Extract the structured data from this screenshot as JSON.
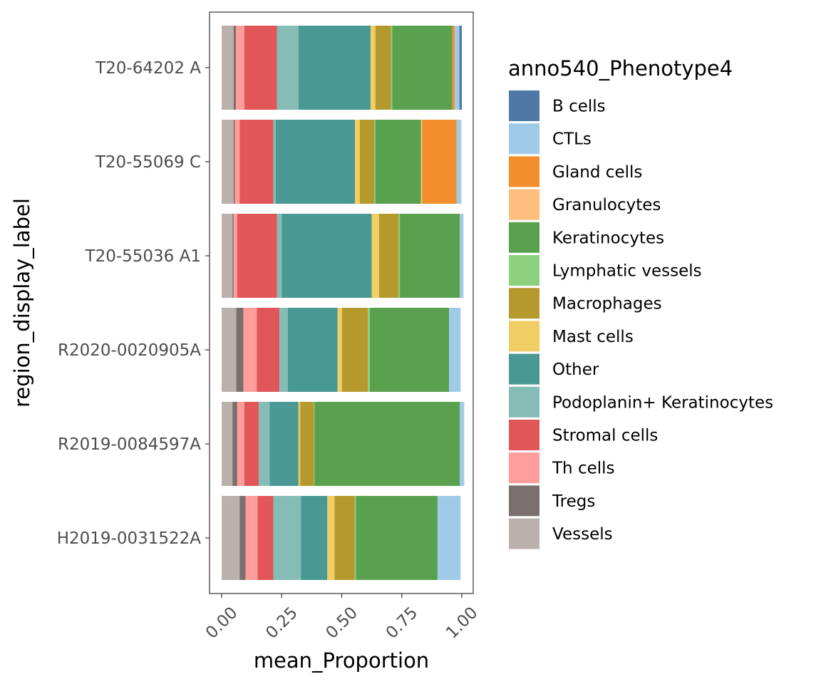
{
  "chart_data": {
    "type": "bar",
    "orientation": "horizontal",
    "stacked": true,
    "xlabel": "mean_Proportion",
    "ylabel": "region_display_label",
    "xlim": [
      0,
      1
    ],
    "x_ticks": [
      "0.00",
      "0.25",
      "0.50",
      "0.75",
      "1.00"
    ],
    "x_tick_rotation": 45,
    "grid": false,
    "legend": {
      "title": "anno540_Phenotype4",
      "position": "right"
    },
    "categories": [
      "T20-64202 A",
      "T20-55069 C",
      "T20-55036 A1",
      "R2020-0020905A",
      "R2019-0084597A",
      "H2019-0031522A"
    ],
    "stack_order": [
      "Vessels",
      "Tregs",
      "Th cells",
      "Stromal cells",
      "Podoplanin+ Keratinocytes",
      "Other",
      "Mast cells",
      "Macrophages",
      "Lymphatic vessels",
      "Keratinocytes",
      "Granulocytes",
      "Gland cells",
      "CTLs",
      "B cells"
    ],
    "series": [
      {
        "name": "B cells",
        "color": "#4E79A7",
        "values": [
          0.01,
          0.0,
          0.0,
          0.0,
          0.0,
          0.0
        ]
      },
      {
        "name": "CTLs",
        "color": "#A0CBE8",
        "values": [
          0.02,
          0.02,
          0.015,
          0.048,
          0.018,
          0.096
        ]
      },
      {
        "name": "Gland cells",
        "color": "#F28E2B",
        "values": [
          0.01,
          0.143,
          0.0,
          0.0,
          0.0,
          0.0
        ]
      },
      {
        "name": "Granulocytes",
        "color": "#FFBE7D",
        "values": [
          0.0,
          0.005,
          0.0,
          0.0,
          0.0,
          0.0
        ]
      },
      {
        "name": "Keratinocytes",
        "color": "#59A14F",
        "values": [
          0.25,
          0.19,
          0.25,
          0.33,
          0.605,
          0.34
        ]
      },
      {
        "name": "Lymphatic vessels",
        "color": "#8CD17D",
        "values": [
          0.005,
          0.005,
          0.005,
          0.008,
          0.002,
          0.005
        ]
      },
      {
        "name": "Macrophages",
        "color": "#B6992D",
        "values": [
          0.065,
          0.06,
          0.082,
          0.108,
          0.058,
          0.084
        ]
      },
      {
        "name": "Mast cells",
        "color": "#F1CE63",
        "values": [
          0.02,
          0.02,
          0.03,
          0.018,
          0.007,
          0.03
        ]
      },
      {
        "name": "Other",
        "color": "#499894",
        "values": [
          0.3,
          0.33,
          0.375,
          0.207,
          0.12,
          0.11
        ]
      },
      {
        "name": "Podoplanin+ Keratinocytes",
        "color": "#86BCB6",
        "values": [
          0.09,
          0.01,
          0.02,
          0.035,
          0.045,
          0.115
        ]
      },
      {
        "name": "Stromal cells",
        "color": "#E15759",
        "values": [
          0.135,
          0.14,
          0.165,
          0.095,
          0.06,
          0.065
        ]
      },
      {
        "name": "Th cells",
        "color": "#FF9D9A",
        "values": [
          0.035,
          0.02,
          0.015,
          0.055,
          0.03,
          0.05
        ]
      },
      {
        "name": "Tregs",
        "color": "#79706E",
        "values": [
          0.01,
          0.005,
          0.005,
          0.03,
          0.02,
          0.025
        ]
      },
      {
        "name": "Vessels",
        "color": "#BAB0AC",
        "values": [
          0.05,
          0.05,
          0.045,
          0.061,
          0.045,
          0.075
        ]
      }
    ]
  }
}
